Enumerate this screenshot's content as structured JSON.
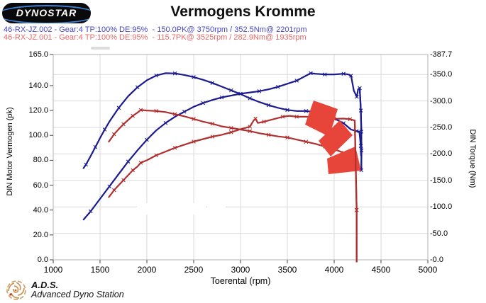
{
  "header": {
    "logo_text": "DYNOSTAR",
    "title": "Vermogens Kromme",
    "runs": [
      {
        "id": "46-RX-JZ.002",
        "label": "46-RX-JZ.002 - Gear:4 TP:100% DE:95%  - 150.0PK@ 3750rpm / 352.5Nm@ 2201rpm",
        "text_color": "#4646cb",
        "curve_color": "#1b1b8f"
      },
      {
        "id": "46-RX-JZ.001",
        "label": "46-RX-JZ.001 - Gear:4 TP:100% DE:95%  - 115.7PK@ 3525rpm / 282.9Nm@ 1935rpm",
        "text_color": "#e46a6a",
        "curve_color": "#b22f2f"
      }
    ]
  },
  "footer": {
    "ads_abbr": "A.D.S.",
    "ads_name": "Advanced Dyno Station"
  },
  "watermark": {
    "arrow_color": "#e8453a"
  },
  "colors": {
    "grid": "#d9d9d9",
    "border": "#b0b0b0",
    "tick": "#444444"
  },
  "chart_data": {
    "type": "line",
    "title": "Vermogens Kromme",
    "xlabel": "Toerental (rpm)",
    "ylabel_left": "DIN Motor Vermogen (pk)",
    "ylabel_right": "DIN Torque (Nm)",
    "xlim": [
      1000,
      5000
    ],
    "ylim_left": [
      0,
      165
    ],
    "ylim_right": [
      0,
      387.7
    ],
    "grid": true,
    "x_tick_values": [
      1000,
      1500,
      2000,
      2500,
      3000,
      3500,
      4000,
      4500,
      5000
    ],
    "x_tick_labels": [
      "1000",
      "1500",
      "2000",
      "2500",
      "3000",
      "3500",
      "4000",
      "4500",
      "5000"
    ],
    "left_tick_values": [
      165,
      140,
      120,
      100,
      80,
      60,
      40,
      20,
      0
    ],
    "left_tick_labels": [
      "165.0",
      "140.0",
      "120.0",
      "100.0",
      "80.0",
      "60.0",
      "40.0",
      "20.0",
      "0.0"
    ],
    "right_tick_values": [
      387.7,
      350,
      300,
      250,
      200,
      150,
      100,
      50,
      0
    ],
    "right_tick_labels": [
      "-387.7",
      "-350.0",
      "-300.0",
      "-250.0",
      "-200.0",
      "-150.0",
      "-100.0",
      "-50.0",
      "-0.0"
    ],
    "series": [
      {
        "name": "46-RX-JZ.002 torque (Nm)",
        "axis": "right",
        "color": "#1b1b8f",
        "peak": "352.5Nm@ 2201rpm",
        "overlay_min": 4268,
        "points": [
          [
            1320,
            172
          ],
          [
            1350,
            180
          ],
          [
            1400,
            196
          ],
          [
            1450,
            213
          ],
          [
            1500,
            230
          ],
          [
            1550,
            246
          ],
          [
            1600,
            261
          ],
          [
            1700,
            287
          ],
          [
            1800,
            309
          ],
          [
            1900,
            326
          ],
          [
            2000,
            339
          ],
          [
            2100,
            348
          ],
          [
            2200,
            352.5
          ],
          [
            2300,
            352
          ],
          [
            2400,
            349
          ],
          [
            2500,
            345
          ],
          [
            2600,
            340
          ],
          [
            2700,
            334
          ],
          [
            2800,
            327
          ],
          [
            2900,
            320
          ],
          [
            3000,
            313
          ],
          [
            3100,
            305
          ],
          [
            3200,
            298
          ],
          [
            3300,
            292
          ],
          [
            3400,
            287
          ],
          [
            3500,
            283
          ],
          [
            3600,
            281
          ],
          [
            3700,
            281
          ],
          [
            3800,
            279
          ],
          [
            3900,
            274
          ],
          [
            4000,
            267
          ],
          [
            4100,
            258
          ],
          [
            4180,
            246
          ],
          [
            4240,
            243
          ],
          [
            4270,
            242
          ],
          [
            4285,
            215
          ],
          [
            4288,
            196
          ]
        ]
      },
      {
        "name": "46-RX-JZ.002 power (pk)",
        "axis": "left",
        "color": "#1b1b8f",
        "peak": "150.0PK@ 3750rpm",
        "overlay_min": 4271,
        "points": [
          [
            1320,
            32
          ],
          [
            1400,
            39
          ],
          [
            1500,
            49
          ],
          [
            1600,
            59
          ],
          [
            1700,
            69
          ],
          [
            1800,
            79
          ],
          [
            1900,
            88
          ],
          [
            2000,
            96.5
          ],
          [
            2100,
            104
          ],
          [
            2200,
            110
          ],
          [
            2300,
            115
          ],
          [
            2400,
            119
          ],
          [
            2500,
            123
          ],
          [
            2600,
            126
          ],
          [
            2700,
            128.5
          ],
          [
            2800,
            130.5
          ],
          [
            2900,
            132
          ],
          [
            3000,
            133.5
          ],
          [
            3100,
            134.5
          ],
          [
            3200,
            135.5
          ],
          [
            3300,
            137
          ],
          [
            3400,
            139
          ],
          [
            3500,
            141.5
          ],
          [
            3600,
            144
          ],
          [
            3700,
            148
          ],
          [
            3750,
            150
          ],
          [
            3800,
            149.5
          ],
          [
            3900,
            149
          ],
          [
            4000,
            149
          ],
          [
            4100,
            149.5
          ],
          [
            4150,
            149
          ],
          [
            4180,
            148
          ],
          [
            4210,
            136
          ],
          [
            4242,
            131
          ],
          [
            4255,
            137
          ],
          [
            4273,
            138
          ],
          [
            4285,
            120
          ],
          [
            4290,
            103
          ],
          [
            4292,
            88
          ],
          [
            4290,
            72
          ]
        ]
      },
      {
        "name": "46-RX-JZ.001 torque (Nm)",
        "axis": "right",
        "color": "#b22f2f",
        "peak": "282.9Nm@ 1935rpm",
        "overlay_min": null,
        "points": [
          [
            1590,
            222
          ],
          [
            1650,
            237
          ],
          [
            1700,
            247
          ],
          [
            1750,
            256
          ],
          [
            1800,
            264
          ],
          [
            1850,
            272
          ],
          [
            1900,
            278
          ],
          [
            1935,
            282.9
          ],
          [
            2000,
            282
          ],
          [
            2100,
            281
          ],
          [
            2200,
            279
          ],
          [
            2300,
            275
          ],
          [
            2400,
            271
          ],
          [
            2500,
            266
          ],
          [
            2600,
            261
          ],
          [
            2700,
            257
          ],
          [
            2800,
            252
          ],
          [
            2900,
            249
          ],
          [
            3000,
            246
          ],
          [
            3100,
            243
          ],
          [
            3200,
            239
          ],
          [
            3300,
            236
          ],
          [
            3400,
            233
          ],
          [
            3500,
            231
          ],
          [
            3600,
            227
          ],
          [
            3700,
            223
          ],
          [
            3800,
            219
          ],
          [
            3900,
            214
          ],
          [
            4000,
            209
          ],
          [
            4100,
            202
          ],
          [
            4150,
            198
          ],
          [
            4200,
            192
          ]
        ]
      },
      {
        "name": "46-RX-JZ.001 power (pk)",
        "axis": "left",
        "color": "#b22f2f",
        "peak": "115.7PK@ 3525rpm",
        "overlay_min": 4218,
        "points": [
          [
            1590,
            50
          ],
          [
            1650,
            56
          ],
          [
            1700,
            60
          ],
          [
            1750,
            64
          ],
          [
            1800,
            68
          ],
          [
            1850,
            72
          ],
          [
            1900,
            75
          ],
          [
            1935,
            78
          ],
          [
            2000,
            80
          ],
          [
            2100,
            84
          ],
          [
            2200,
            87
          ],
          [
            2300,
            90
          ],
          [
            2400,
            92.5
          ],
          [
            2500,
            95
          ],
          [
            2600,
            97
          ],
          [
            2700,
            99
          ],
          [
            2800,
            100.5
          ],
          [
            2900,
            102.5
          ],
          [
            3000,
            105
          ],
          [
            3100,
            107
          ],
          [
            3140,
            112
          ],
          [
            3160,
            113.5
          ],
          [
            3185,
            110
          ],
          [
            3250,
            111
          ],
          [
            3350,
            113
          ],
          [
            3450,
            115
          ],
          [
            3525,
            115.7
          ],
          [
            3600,
            115
          ],
          [
            3700,
            115
          ],
          [
            3800,
            114.5
          ],
          [
            3900,
            113.5
          ],
          [
            4000,
            113.3
          ],
          [
            4100,
            113.5
          ],
          [
            4170,
            113
          ],
          [
            4220,
            112
          ],
          [
            4240,
            40
          ],
          [
            4240,
            -2
          ]
        ]
      }
    ]
  }
}
